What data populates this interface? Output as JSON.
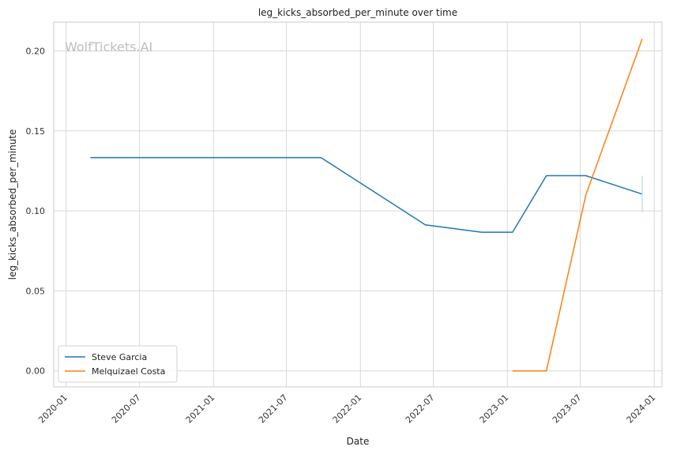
{
  "chart_data": {
    "type": "line",
    "title": "leg_kicks_absorbed_per_minute over time",
    "xlabel": "Date",
    "ylabel": "leg_kicks_absorbed_per_minute",
    "watermark": "WolfTickets.AI",
    "xlim": [
      "2019-12-01",
      "2024-01-20"
    ],
    "ylim": [
      -0.01,
      0.218
    ],
    "x_ticks": [
      "2020-01",
      "2020-07",
      "2021-01",
      "2021-07",
      "2022-01",
      "2022-07",
      "2023-01",
      "2023-07",
      "2024-01"
    ],
    "y_ticks": [
      "0.00",
      "0.05",
      "0.10",
      "0.15",
      "0.20"
    ],
    "grid": true,
    "legend_position": "lower-left",
    "series": [
      {
        "name": "Steve Garcia",
        "color": "#1f77b4",
        "points": [
          {
            "x": "2020-03-01",
            "y": 0.1333
          },
          {
            "x": "2021-09-25",
            "y": 0.1333
          },
          {
            "x": "2022-06-11",
            "y": 0.0913
          },
          {
            "x": "2022-10-29",
            "y": 0.0867
          },
          {
            "x": "2023-01-14",
            "y": 0.0867
          },
          {
            "x": "2023-04-08",
            "y": 0.122
          },
          {
            "x": "2023-07-15",
            "y": 0.122
          },
          {
            "x": "2023-12-02",
            "y": 0.1105
          }
        ]
      },
      {
        "name": "Melquizael Costa",
        "color": "#ff7f0e",
        "points": [
          {
            "x": "2023-01-14",
            "y": 0.0
          },
          {
            "x": "2023-04-08",
            "y": 0.0
          },
          {
            "x": "2023-07-15",
            "y": 0.11
          },
          {
            "x": "2023-12-02",
            "y": 0.2075
          }
        ]
      }
    ],
    "error_marks": [
      {
        "x": "2023-12-02",
        "y_low": 0.099,
        "y_high": 0.122,
        "color": "#a8d8d8"
      }
    ]
  }
}
